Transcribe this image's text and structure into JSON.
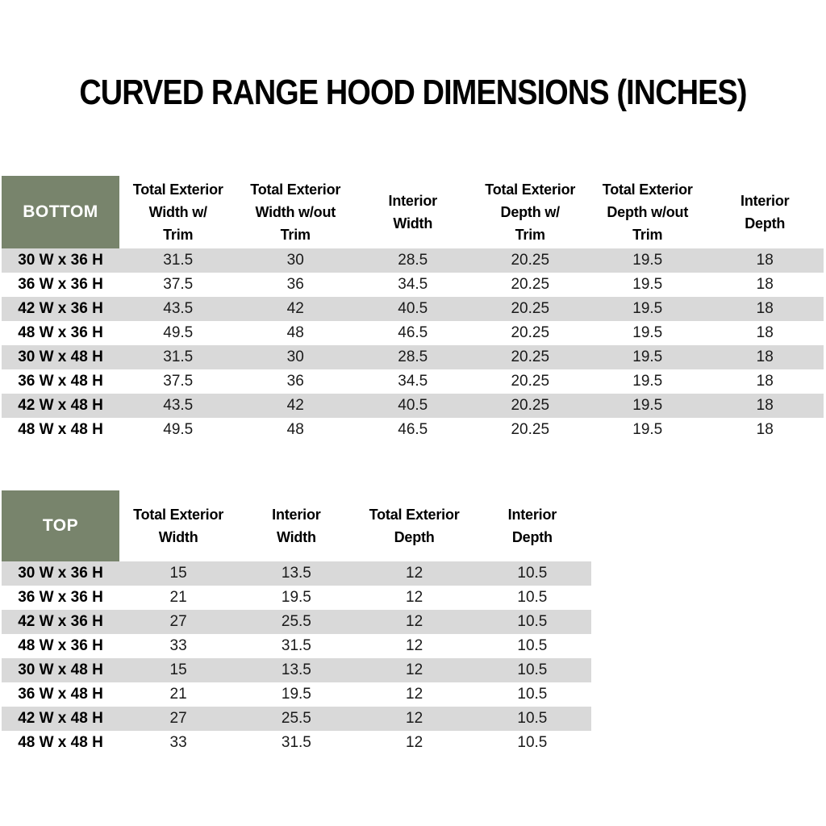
{
  "title": "CURVED RANGE HOOD DIMENSIONS (INCHES)",
  "colors": {
    "header_green": "#78846C",
    "stripe_gray": "#D9D9D9",
    "background": "#FFFFFF",
    "text": "#111111"
  },
  "bottom_table": {
    "label": "BOTTOM",
    "columns": [
      "Total Exterior\nWidth w/\nTrim",
      "Total Exterior\nWidth w/out\nTrim",
      "Interior\nWidth",
      "Total Exterior\nDepth w/\nTrim",
      "Total Exterior\nDepth w/out\nTrim",
      "Interior\nDepth"
    ],
    "rows": [
      {
        "label": "30 W x 36 H",
        "values": [
          "31.5",
          "30",
          "28.5",
          "20.25",
          "19.5",
          "18"
        ]
      },
      {
        "label": "36 W x 36 H",
        "values": [
          "37.5",
          "36",
          "34.5",
          "20.25",
          "19.5",
          "18"
        ]
      },
      {
        "label": "42 W x 36 H",
        "values": [
          "43.5",
          "42",
          "40.5",
          "20.25",
          "19.5",
          "18"
        ]
      },
      {
        "label": "48 W x 36 H",
        "values": [
          "49.5",
          "48",
          "46.5",
          "20.25",
          "19.5",
          "18"
        ]
      },
      {
        "label": "30 W x 48 H",
        "values": [
          "31.5",
          "30",
          "28.5",
          "20.25",
          "19.5",
          "18"
        ]
      },
      {
        "label": "36 W x 48 H",
        "values": [
          "37.5",
          "36",
          "34.5",
          "20.25",
          "19.5",
          "18"
        ]
      },
      {
        "label": "42 W x 48 H",
        "values": [
          "43.5",
          "42",
          "40.5",
          "20.25",
          "19.5",
          "18"
        ]
      },
      {
        "label": "48 W x 48 H",
        "values": [
          "49.5",
          "48",
          "46.5",
          "20.25",
          "19.5",
          "18"
        ]
      }
    ]
  },
  "top_table": {
    "label": "TOP",
    "columns": [
      "Total Exterior\nWidth",
      "Interior\nWidth",
      "Total Exterior\nDepth",
      "Interior\nDepth"
    ],
    "rows": [
      {
        "label": "30 W x 36 H",
        "values": [
          "15",
          "13.5",
          "12",
          "10.5"
        ]
      },
      {
        "label": "36 W x 36 H",
        "values": [
          "21",
          "19.5",
          "12",
          "10.5"
        ]
      },
      {
        "label": "42 W x 36 H",
        "values": [
          "27",
          "25.5",
          "12",
          "10.5"
        ]
      },
      {
        "label": "48 W x 36 H",
        "values": [
          "33",
          "31.5",
          "12",
          "10.5"
        ]
      },
      {
        "label": "30 W x 48 H",
        "values": [
          "15",
          "13.5",
          "12",
          "10.5"
        ]
      },
      {
        "label": "36 W x 48 H",
        "values": [
          "21",
          "19.5",
          "12",
          "10.5"
        ]
      },
      {
        "label": "42 W x 48 H",
        "values": [
          "27",
          "25.5",
          "12",
          "10.5"
        ]
      },
      {
        "label": "48 W x 48 H",
        "values": [
          "33",
          "31.5",
          "12",
          "10.5"
        ]
      }
    ]
  }
}
